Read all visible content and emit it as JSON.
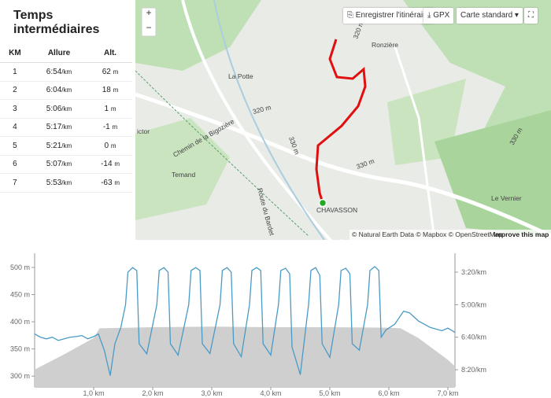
{
  "splits": {
    "title": "Temps intermédiaires",
    "headers": [
      "KM",
      "Allure",
      "Alt."
    ],
    "rows": [
      [
        "1",
        "6:54",
        "/km",
        "62",
        "m"
      ],
      [
        "2",
        "6:04",
        "/km",
        "18",
        "m"
      ],
      [
        "3",
        "5:06",
        "/km",
        "1",
        "m"
      ],
      [
        "4",
        "5:17",
        "/km",
        "-1",
        "m"
      ],
      [
        "5",
        "5:21",
        "/km",
        "0",
        "m"
      ],
      [
        "6",
        "5:07",
        "/km",
        "-14",
        "m"
      ],
      [
        "7",
        "5:53",
        "/km",
        "-63",
        "m"
      ]
    ]
  },
  "map": {
    "buttons": {
      "save": "Enregistrer l'itinéraire",
      "gpx": "GPX",
      "style": "Carte standard"
    },
    "zoom": [
      "+",
      "−"
    ],
    "labels": [
      "Ronzière",
      "La Potte",
      "Temand",
      "Chemin de la Bigozière",
      "Route du Bardet",
      "CHAVASSON",
      "Le Vernier",
      "ictor",
      "320 m",
      "330 m",
      "330 m",
      "330 m",
      "320 m"
    ],
    "attribution": "© Natural Earth Data © Mapbox © OpenStreetMap",
    "improve": "Improve this map"
  },
  "chart_data": {
    "type": "line",
    "xlim": [
      0,
      7.12
    ],
    "ylim": [
      280,
      526
    ],
    "y2lim": [
      553,
      142
    ],
    "xticks": [
      {
        "value": 1,
        "label": "1,0 km"
      },
      {
        "value": 2,
        "label": "2,0 km"
      },
      {
        "value": 3,
        "label": "3,0 km"
      },
      {
        "value": 4,
        "label": "4,0 km"
      },
      {
        "value": 5,
        "label": "5,0 km"
      },
      {
        "value": 6,
        "label": "6,0 km"
      },
      {
        "value": 7,
        "label": "7,0 km"
      }
    ],
    "yticks": [
      {
        "value": 300,
        "label": "300 m"
      },
      {
        "value": 350,
        "label": "350 m"
      },
      {
        "value": 400,
        "label": "400 m"
      },
      {
        "value": 450,
        "label": "450 m"
      },
      {
        "value": 500,
        "label": "500 m"
      }
    ],
    "y2ticks": [
      {
        "value": 200,
        "label": "3:20/km"
      },
      {
        "value": 300,
        "label": "5:00/km"
      },
      {
        "value": 400,
        "label": "6:40/km"
      },
      {
        "value": 500,
        "label": "8:20/km"
      }
    ],
    "series": [
      {
        "kind": "area",
        "color": "#cfcfcf",
        "x": [
          0,
          0.5,
          1.0,
          1.1,
          2.0,
          3.0,
          4.0,
          5.0,
          6.0,
          6.2,
          6.5,
          7.0,
          7.12
        ],
        "values": [
          312,
          340,
          370,
          388,
          390,
          391,
          390,
          390,
          389,
          388,
          370,
          330,
          318
        ]
      },
      {
        "kind": "line",
        "axis": "y2",
        "color": "#4a9ac6",
        "x": [
          0,
          0.1,
          0.2,
          0.3,
          0.4,
          0.5,
          0.6,
          0.7,
          0.8,
          0.9,
          1.0,
          1.08,
          1.18,
          1.28,
          1.36,
          1.46,
          1.54,
          1.58,
          1.66,
          1.73,
          1.77,
          1.9,
          2.07,
          2.11,
          2.19,
          2.26,
          2.3,
          2.43,
          2.61,
          2.65,
          2.73,
          2.8,
          2.84,
          2.97,
          3.14,
          3.18,
          3.26,
          3.33,
          3.37,
          3.5,
          3.64,
          3.68,
          3.76,
          3.83,
          3.87,
          4.0,
          4.13,
          4.17,
          4.25,
          4.32,
          4.36,
          4.5,
          4.64,
          4.68,
          4.76,
          4.83,
          4.87,
          5.0,
          5.15,
          5.19,
          5.27,
          5.34,
          5.38,
          5.5,
          5.64,
          5.68,
          5.76,
          5.83,
          5.87,
          5.95,
          6.1,
          6.25,
          6.35,
          6.5,
          6.7,
          6.9,
          7.0,
          7.12
        ],
        "values": [
          390,
          400,
          405,
          400,
          410,
          405,
          400,
          398,
          395,
          405,
          398,
          390,
          440,
          518,
          420,
          370,
          300,
          200,
          186,
          195,
          420,
          451,
          300,
          195,
          186,
          200,
          420,
          455,
          300,
          195,
          186,
          195,
          420,
          450,
          300,
          195,
          186,
          200,
          420,
          460,
          300,
          195,
          186,
          195,
          420,
          455,
          300,
          195,
          188,
          205,
          430,
          515,
          300,
          195,
          186,
          210,
          420,
          462,
          300,
          195,
          188,
          205,
          420,
          440,
          300,
          195,
          183,
          195,
          400,
          378,
          360,
          320,
          325,
          350,
          370,
          380,
          372,
          385
        ]
      }
    ]
  }
}
